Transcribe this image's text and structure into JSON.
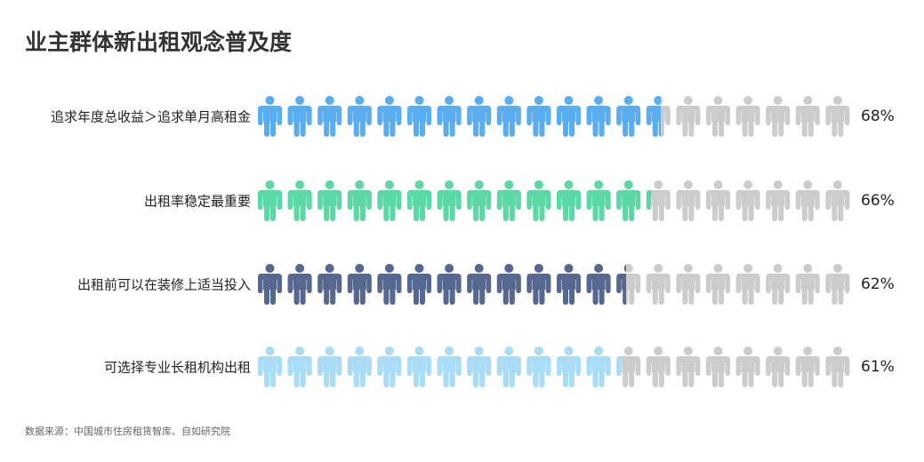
{
  "title": "业主群体新出租观念普及度",
  "source": "数据来源：中国城市住房租赁智库、自如研究院",
  "chart_data": {
    "type": "pictogram",
    "title": "业主群体新出租观念普及度",
    "icons_per_row": 20,
    "icon": "person-icon",
    "empty_color": "#cccccc",
    "categories": [
      "追求年度总收益＞追求单月高租金",
      "出租率稳定最重要",
      "出租前可以在装修上适当投入",
      "可选择专业长租机构出租"
    ],
    "values": [
      68,
      66,
      62,
      61
    ],
    "labels": [
      "68%",
      "66%",
      "62%",
      "61%"
    ],
    "colors": [
      "#5aaef0",
      "#5ad8a6",
      "#56688f",
      "#a8dcf7"
    ]
  }
}
